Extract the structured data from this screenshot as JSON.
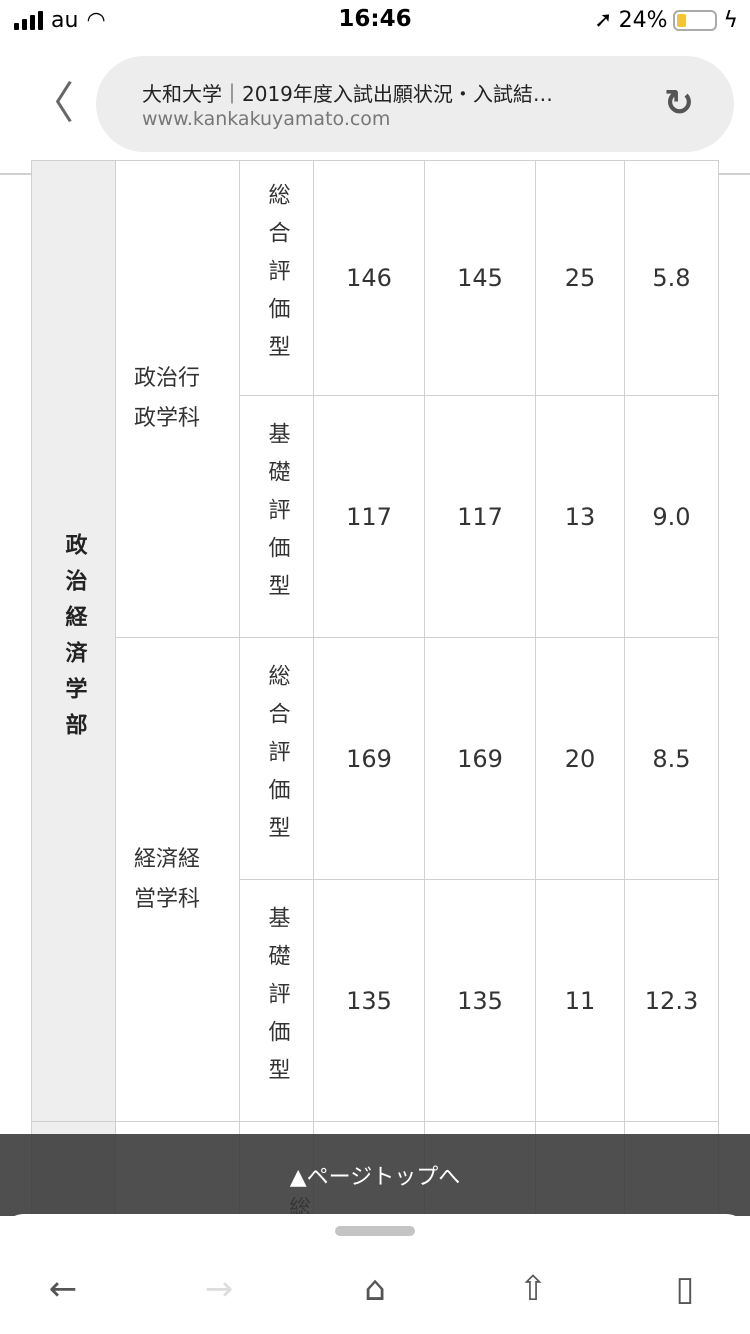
{
  "status": {
    "carrier": "au",
    "time": "16:46",
    "battery": "24%",
    "battery_level": 0.24
  },
  "browser": {
    "title": "大和大学｜2019年度入試出願状況・入試結…",
    "url": "www.kankakuyamato.com"
  },
  "table": {
    "faculty": "政治経済学部",
    "rows": [
      {
        "dept": "政治行政学科",
        "type": "総合評価型",
        "c1": "146",
        "c2": "145",
        "c3": "25",
        "c4": "5.8"
      },
      {
        "type": "基礎評価型",
        "c1": "117",
        "c2": "117",
        "c3": "13",
        "c4": "9.0"
      },
      {
        "dept": "経済経営学科",
        "type": "総合評価型",
        "c1": "169",
        "c2": "169",
        "c3": "20",
        "c4": "8.5"
      },
      {
        "type": "基礎評価型",
        "c1": "135",
        "c2": "135",
        "c3": "11",
        "c4": "12.3"
      }
    ],
    "partial_type": "総合"
  },
  "page_top": "▲ページトップへ"
}
